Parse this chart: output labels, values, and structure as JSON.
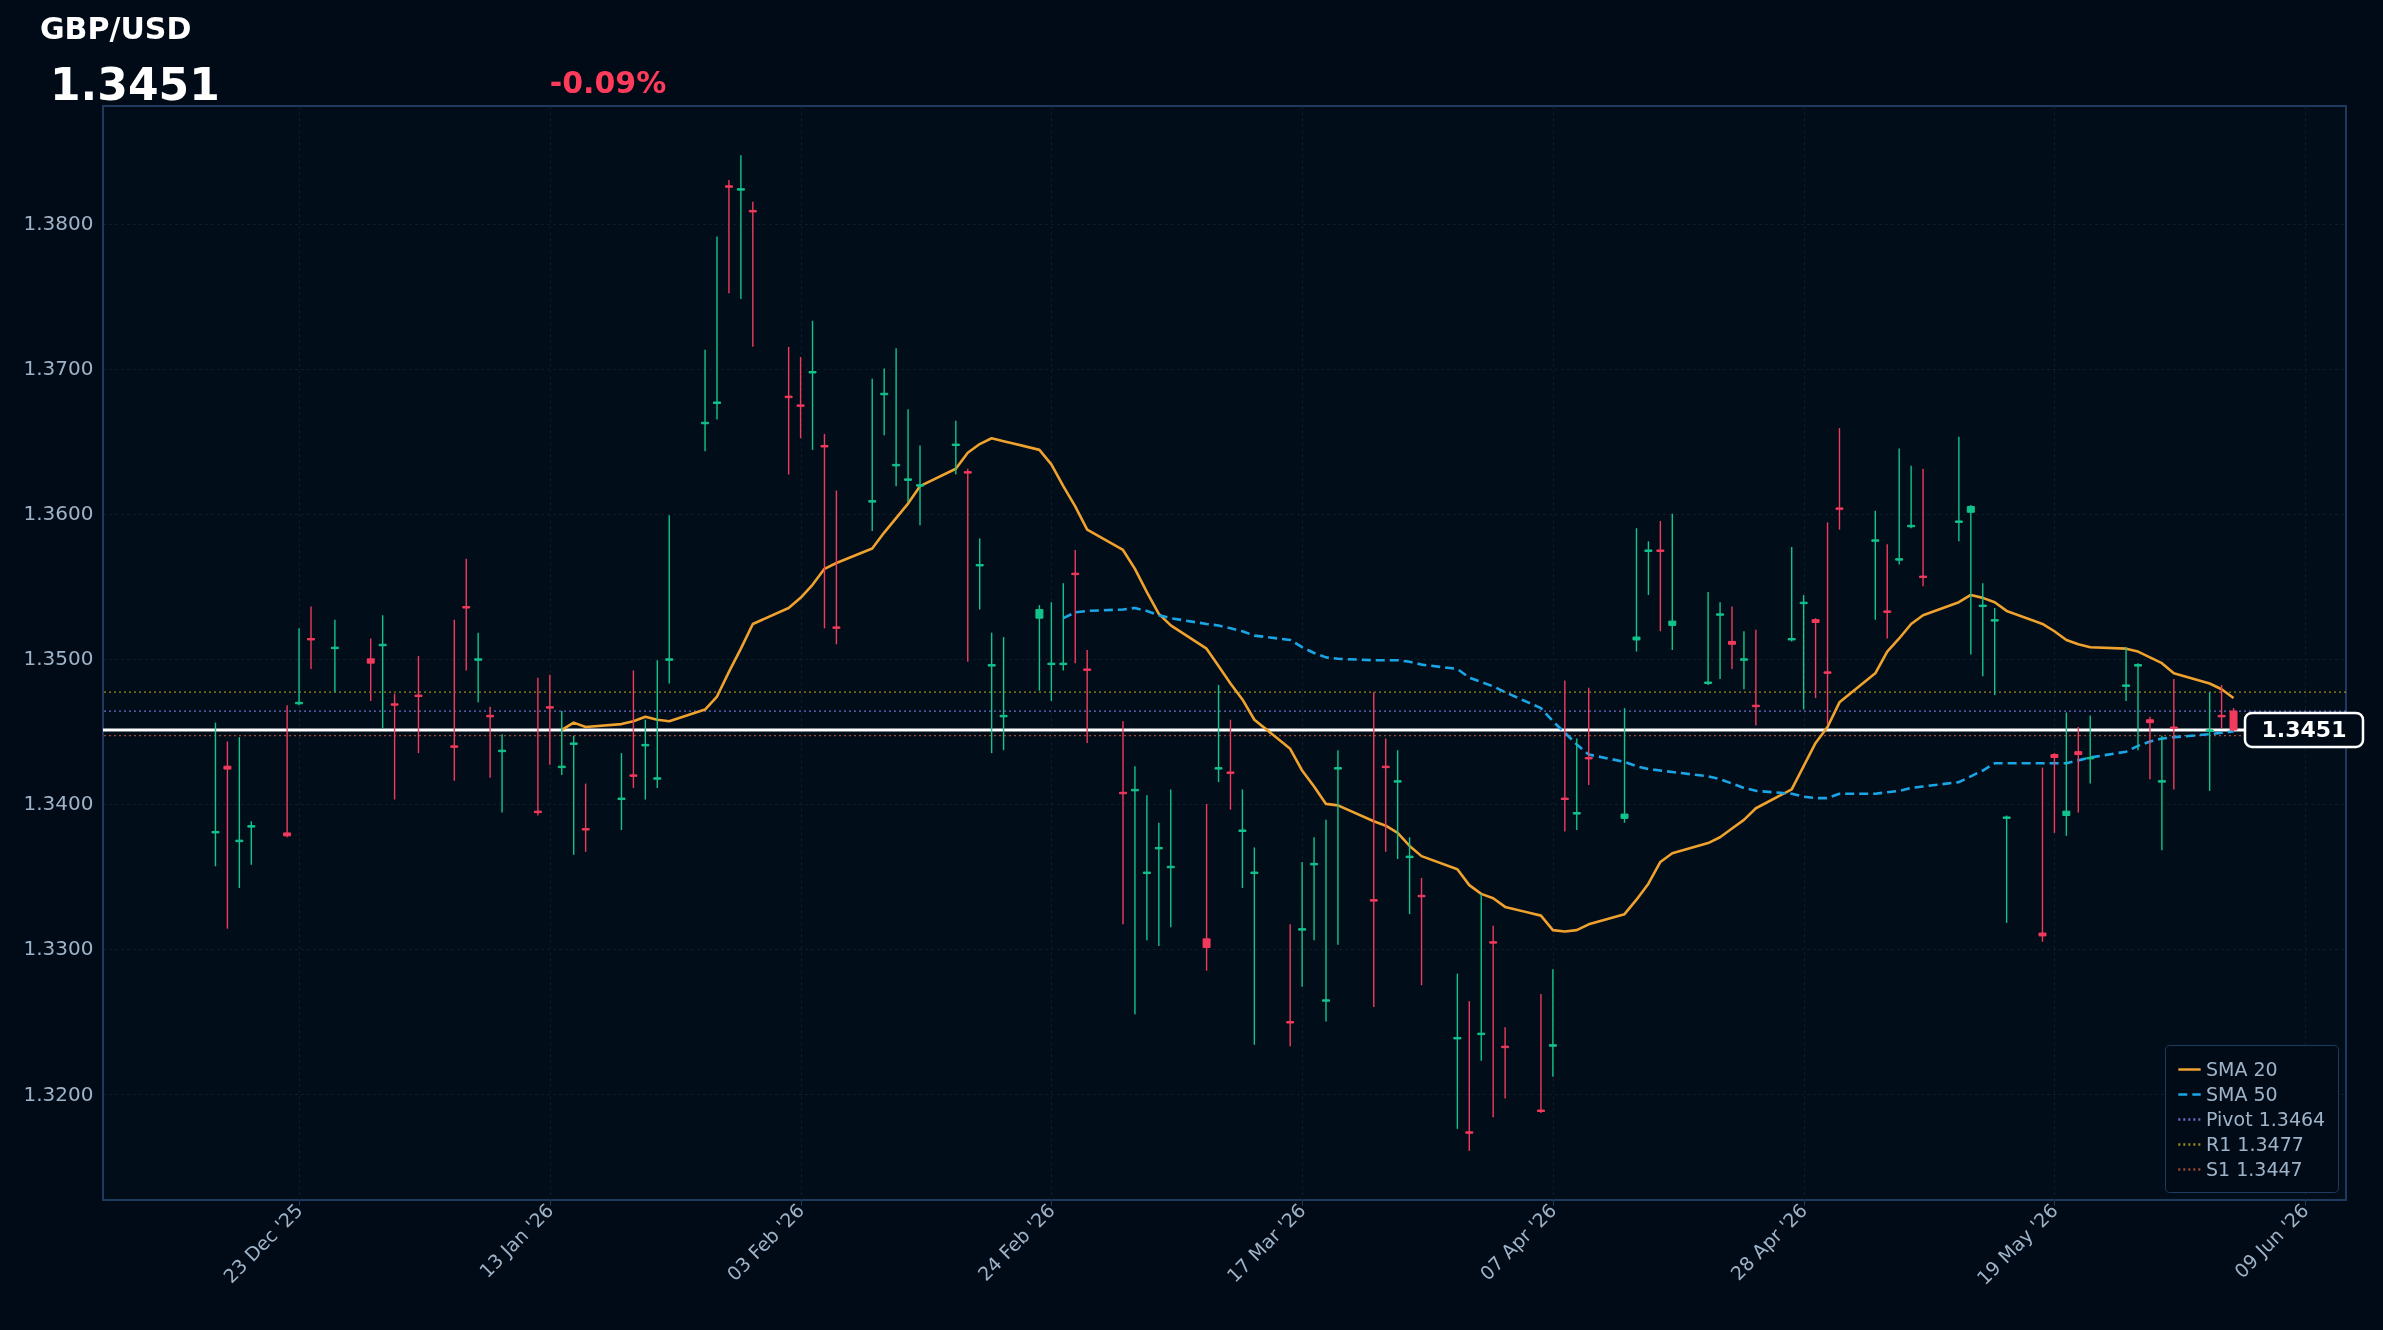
{
  "chart_data": {
    "type": "candlestick",
    "title": "GBP/USD",
    "subtitle": "1.3451",
    "annotations": [
      "-0.09%"
    ],
    "x": [
      "2025-12-16",
      "2025-12-17",
      "2025-12-18",
      "2025-12-19",
      "2025-12-22",
      "2025-12-23",
      "2025-12-24",
      "2025-12-26",
      "2025-12-29",
      "2025-12-30",
      "2025-12-31",
      "2026-01-02",
      "2026-01-05",
      "2026-01-06",
      "2026-01-07",
      "2026-01-08",
      "2026-01-09",
      "2026-01-12",
      "2026-01-13",
      "2026-01-14",
      "2026-01-15",
      "2026-01-16",
      "2026-01-19",
      "2026-01-20",
      "2026-01-21",
      "2026-01-22",
      "2026-01-23",
      "2026-01-26",
      "2026-01-27",
      "2026-01-28",
      "2026-01-29",
      "2026-01-30",
      "2026-02-02",
      "2026-02-03",
      "2026-02-04",
      "2026-02-05",
      "2026-02-06",
      "2026-02-09",
      "2026-02-10",
      "2026-02-11",
      "2026-02-12",
      "2026-02-13",
      "2026-02-16",
      "2026-02-17",
      "2026-02-18",
      "2026-02-19",
      "2026-02-20",
      "2026-02-23",
      "2026-02-24",
      "2026-02-25",
      "2026-02-26",
      "2026-02-27",
      "2026-03-02",
      "2026-03-03",
      "2026-03-04",
      "2026-03-05",
      "2026-03-06",
      "2026-03-09",
      "2026-03-10",
      "2026-03-11",
      "2026-03-12",
      "2026-03-13",
      "2026-03-16",
      "2026-03-17",
      "2026-03-18",
      "2026-03-19",
      "2026-03-20",
      "2026-03-23",
      "2026-03-24",
      "2026-03-25",
      "2026-03-26",
      "2026-03-27",
      "2026-03-30",
      "2026-03-31",
      "2026-04-01",
      "2026-04-02",
      "2026-04-03",
      "2026-04-06",
      "2026-04-07",
      "2026-04-08",
      "2026-04-09",
      "2026-04-10",
      "2026-04-13",
      "2026-04-14",
      "2026-04-15",
      "2026-04-16",
      "2026-04-17",
      "2026-04-20",
      "2026-04-21",
      "2026-04-22",
      "2026-04-23",
      "2026-04-24",
      "2026-04-27",
      "2026-04-28",
      "2026-04-29",
      "2026-04-30",
      "2026-05-01",
      "2026-05-04",
      "2026-05-05",
      "2026-05-06",
      "2026-05-07",
      "2026-05-08",
      "2026-05-11",
      "2026-05-12",
      "2026-05-13",
      "2026-05-14",
      "2026-05-15",
      "2026-05-18",
      "2026-05-19",
      "2026-05-20",
      "2026-05-21",
      "2026-05-22",
      "2026-05-25",
      "2026-05-26",
      "2026-05-27",
      "2026-05-28",
      "2026-05-29",
      "2026-06-01",
      "2026-06-02",
      "2026-06-03"
    ],
    "ohlc": [
      [
        1.338,
        1.3456,
        1.3357,
        1.3381
      ],
      [
        1.3426,
        1.3443,
        1.3314,
        1.3424
      ],
      [
        1.3374,
        1.3446,
        1.3342,
        1.3375
      ],
      [
        1.3384,
        1.3388,
        1.3358,
        1.3385
      ],
      [
        1.338,
        1.3468,
        1.3377,
        1.3378
      ],
      [
        1.3469,
        1.3521,
        1.3468,
        1.347
      ],
      [
        1.3514,
        1.3536,
        1.3493,
        1.3513
      ],
      [
        1.3507,
        1.3527,
        1.3477,
        1.3508
      ],
      [
        1.35,
        1.3514,
        1.3471,
        1.3497
      ],
      [
        1.3509,
        1.353,
        1.3452,
        1.351
      ],
      [
        1.3469,
        1.3476,
        1.3403,
        1.3468
      ],
      [
        1.3475,
        1.3502,
        1.3435,
        1.3474
      ],
      [
        1.344,
        1.3527,
        1.3416,
        1.3439
      ],
      [
        1.3536,
        1.3569,
        1.3492,
        1.3535
      ],
      [
        1.3499,
        1.3518,
        1.347,
        1.35
      ],
      [
        1.3461,
        1.3467,
        1.3418,
        1.346
      ],
      [
        1.3436,
        1.3448,
        1.3394,
        1.3437
      ],
      [
        1.3395,
        1.3487,
        1.3392,
        1.3394
      ],
      [
        1.3467,
        1.3489,
        1.3427,
        1.3466
      ],
      [
        1.3425,
        1.3464,
        1.342,
        1.3426
      ],
      [
        1.3441,
        1.3447,
        1.3365,
        1.3442
      ],
      [
        1.3383,
        1.3414,
        1.3367,
        1.3382
      ],
      [
        1.3403,
        1.3435,
        1.3382,
        1.3404
      ],
      [
        1.342,
        1.3492,
        1.3411,
        1.3419
      ],
      [
        1.344,
        1.3458,
        1.3403,
        1.3441
      ],
      [
        1.3417,
        1.3499,
        1.3411,
        1.3418
      ],
      [
        1.3499,
        1.3599,
        1.3483,
        1.35
      ],
      [
        1.3662,
        1.3713,
        1.3643,
        1.3663
      ],
      [
        1.3676,
        1.3791,
        1.3665,
        1.3677
      ],
      [
        1.3826,
        1.383,
        1.3752,
        1.3825
      ],
      [
        1.3823,
        1.3847,
        1.3748,
        1.3824
      ],
      [
        1.3809,
        1.3815,
        1.3715,
        1.3808
      ],
      [
        1.3681,
        1.3715,
        1.3627,
        1.368
      ],
      [
        1.3675,
        1.3708,
        1.3652,
        1.3674
      ],
      [
        1.3697,
        1.3733,
        1.3644,
        1.3698
      ],
      [
        1.3647,
        1.3655,
        1.3521,
        1.3646
      ],
      [
        1.3522,
        1.3616,
        1.351,
        1.3521
      ],
      [
        1.3608,
        1.3693,
        1.3588,
        1.3609
      ],
      [
        1.3682,
        1.37,
        1.3654,
        1.3683
      ],
      [
        1.3633,
        1.3714,
        1.3619,
        1.3634
      ],
      [
        1.3623,
        1.3672,
        1.3608,
        1.3624
      ],
      [
        1.3619,
        1.3647,
        1.3592,
        1.362
      ],
      [
        1.3647,
        1.3664,
        1.3627,
        1.3648
      ],
      [
        1.3629,
        1.3631,
        1.3498,
        1.3628
      ],
      [
        1.3564,
        1.3583,
        1.3534,
        1.3565
      ],
      [
        1.3495,
        1.3518,
        1.3435,
        1.3496
      ],
      [
        1.346,
        1.3515,
        1.3437,
        1.3461
      ],
      [
        1.3528,
        1.3537,
        1.3478,
        1.3534
      ],
      [
        1.3496,
        1.3539,
        1.3471,
        1.3497
      ],
      [
        1.3496,
        1.3552,
        1.3492,
        1.3497
      ],
      [
        1.3559,
        1.3575,
        1.3497,
        1.3558
      ],
      [
        1.3493,
        1.3506,
        1.3442,
        1.3492
      ],
      [
        1.3408,
        1.3457,
        1.3317,
        1.3407
      ],
      [
        1.3409,
        1.3426,
        1.3255,
        1.341
      ],
      [
        1.3352,
        1.3406,
        1.3306,
        1.3353
      ],
      [
        1.3369,
        1.3387,
        1.3302,
        1.337
      ],
      [
        1.3356,
        1.341,
        1.3315,
        1.3357
      ],
      [
        1.3307,
        1.34,
        1.3285,
        1.3301
      ],
      [
        1.3424,
        1.3482,
        1.3415,
        1.3425
      ],
      [
        1.3422,
        1.3458,
        1.3396,
        1.3421
      ],
      [
        1.3381,
        1.341,
        1.3342,
        1.3382
      ],
      [
        1.3352,
        1.337,
        1.3234,
        1.3353
      ],
      [
        1.325,
        1.3317,
        1.3233,
        1.3249
      ],
      [
        1.3313,
        1.336,
        1.3274,
        1.3314
      ],
      [
        1.3358,
        1.3377,
        1.3306,
        1.3359
      ],
      [
        1.3264,
        1.3389,
        1.325,
        1.3265
      ],
      [
        1.3424,
        1.3437,
        1.3303,
        1.3425
      ],
      [
        1.3334,
        1.3477,
        1.326,
        1.3333
      ],
      [
        1.3426,
        1.3445,
        1.3367,
        1.3425
      ],
      [
        1.3415,
        1.3437,
        1.3362,
        1.3416
      ],
      [
        1.3363,
        1.3377,
        1.3324,
        1.3364
      ],
      [
        1.3337,
        1.3349,
        1.3275,
        1.3336
      ],
      [
        1.3238,
        1.3283,
        1.3176,
        1.3239
      ],
      [
        1.3174,
        1.3264,
        1.3161,
        1.3173
      ],
      [
        1.3241,
        1.3338,
        1.3223,
        1.3242
      ],
      [
        1.3305,
        1.3316,
        1.3184,
        1.3304
      ],
      [
        1.3233,
        1.3246,
        1.3197,
        1.3232
      ],
      [
        1.3189,
        1.3269,
        1.3187,
        1.3188
      ],
      [
        1.3233,
        1.3286,
        1.3212,
        1.3234
      ],
      [
        1.3404,
        1.3485,
        1.3381,
        1.3403
      ],
      [
        1.3393,
        1.3445,
        1.3382,
        1.3394
      ],
      [
        1.3432,
        1.348,
        1.3413,
        1.3431
      ],
      [
        1.339,
        1.3466,
        1.3387,
        1.3393
      ],
      [
        1.3513,
        1.359,
        1.3505,
        1.3515
      ],
      [
        1.3574,
        1.3581,
        1.3544,
        1.3575
      ],
      [
        1.3575,
        1.3595,
        1.3519,
        1.3574
      ],
      [
        1.3523,
        1.36,
        1.3506,
        1.3526
      ],
      [
        1.3483,
        1.3546,
        1.3482,
        1.3484
      ],
      [
        1.353,
        1.3539,
        1.3486,
        1.3531
      ],
      [
        1.3512,
        1.3536,
        1.3493,
        1.351
      ],
      [
        1.3499,
        1.3519,
        1.3479,
        1.35
      ],
      [
        1.3468,
        1.352,
        1.3454,
        1.3467
      ],
      [
        1.3513,
        1.3577,
        1.3512,
        1.3514
      ],
      [
        1.3538,
        1.3544,
        1.3465,
        1.3539
      ],
      [
        1.3527,
        1.3528,
        1.3473,
        1.3525
      ],
      [
        1.3491,
        1.3594,
        1.3455,
        1.349
      ],
      [
        1.3604,
        1.3659,
        1.3589,
        1.3603
      ],
      [
        1.3581,
        1.3602,
        1.3527,
        1.3582
      ],
      [
        1.3533,
        1.3579,
        1.3514,
        1.3532
      ],
      [
        1.3568,
        1.3645,
        1.3565,
        1.3569
      ],
      [
        1.3591,
        1.3633,
        1.359,
        1.3592
      ],
      [
        1.3557,
        1.3631,
        1.355,
        1.3556
      ],
      [
        1.3594,
        1.3653,
        1.3581,
        1.3595
      ],
      [
        1.3601,
        1.3606,
        1.3503,
        1.3605
      ],
      [
        1.3536,
        1.3552,
        1.3488,
        1.3537
      ],
      [
        1.3526,
        1.3535,
        1.3475,
        1.3527
      ],
      [
        1.339,
        1.3392,
        1.3318,
        1.3391
      ],
      [
        1.3311,
        1.3425,
        1.3305,
        1.3309
      ],
      [
        1.3434,
        1.3435,
        1.338,
        1.3432
      ],
      [
        1.3392,
        1.3463,
        1.3378,
        1.3395
      ],
      [
        1.3436,
        1.3453,
        1.3394,
        1.3434
      ],
      [
        1.3431,
        1.3461,
        1.3414,
        1.3432
      ],
      [
        1.3481,
        1.3508,
        1.3471,
        1.3482
      ],
      [
        1.3495,
        1.3497,
        1.3437,
        1.3496
      ],
      [
        1.3458,
        1.346,
        1.3417,
        1.3456
      ],
      [
        1.3415,
        1.3447,
        1.3368,
        1.3416
      ],
      [
        1.3453,
        1.3486,
        1.341,
        1.3452
      ],
      [
        1.345,
        1.3477,
        1.3409,
        1.3451
      ],
      [
        1.3461,
        1.3482,
        1.3452,
        1.346
      ],
      [
        1.3464,
        1.3466,
        1.345,
        1.3451
      ]
    ],
    "colors": [
      "#12c48b",
      "#f23a5c",
      "#12c48b",
      "#12c48b",
      "#f23a5c",
      "#12c48b",
      "#f23a5c",
      "#12c48b",
      "#f23a5c",
      "#12c48b",
      "#f23a5c",
      "#f23a5c",
      "#f23a5c",
      "#f23a5c",
      "#12c48b",
      "#f23a5c",
      "#12c48b",
      "#f23a5c",
      "#f23a5c",
      "#12c48b",
      "#12c48b",
      "#f23a5c",
      "#12c48b",
      "#f23a5c",
      "#12c48b",
      "#12c48b",
      "#12c48b",
      "#12c48b",
      "#12c48b",
      "#f23a5c",
      "#12c48b",
      "#f23a5c",
      "#f23a5c",
      "#f23a5c",
      "#12c48b",
      "#f23a5c",
      "#f23a5c",
      "#12c48b",
      "#12c48b",
      "#12c48b",
      "#12c48b",
      "#12c48b",
      "#12c48b",
      "#f23a5c",
      "#12c48b",
      "#12c48b",
      "#12c48b",
      "#12c48b",
      "#12c48b",
      "#12c48b",
      "#f23a5c",
      "#f23a5c",
      "#f23a5c",
      "#12c48b",
      "#12c48b",
      "#12c48b",
      "#12c48b",
      "#f23a5c",
      "#12c48b",
      "#f23a5c",
      "#12c48b",
      "#12c48b",
      "#f23a5c",
      "#12c48b",
      "#12c48b",
      "#12c48b",
      "#12c48b",
      "#f23a5c",
      "#f23a5c",
      "#12c48b",
      "#12c48b",
      "#f23a5c",
      "#12c48b",
      "#f23a5c",
      "#12c48b",
      "#f23a5c",
      "#f23a5c",
      "#f23a5c",
      "#12c48b",
      "#f23a5c",
      "#12c48b",
      "#f23a5c",
      "#12c48b",
      "#12c48b",
      "#12c48b",
      "#f23a5c",
      "#12c48b",
      "#12c48b",
      "#12c48b",
      "#f23a5c",
      "#12c48b",
      "#f23a5c",
      "#12c48b",
      "#12c48b",
      "#f23a5c",
      "#f23a5c",
      "#f23a5c",
      "#12c48b",
      "#f23a5c",
      "#12c48b",
      "#12c48b",
      "#f23a5c",
      "#12c48b",
      "#12c48b",
      "#12c48b",
      "#12c48b",
      "#12c48b",
      "#f23a5c",
      "#f23a5c",
      "#12c48b",
      "#f23a5c",
      "#12c48b",
      "#12c48b",
      "#12c48b",
      "#f23a5c",
      "#12c48b",
      "#f23a5c",
      "#12c48b",
      "#f23a5c",
      "#f23a5c"
    ],
    "series": [
      {
        "name": "SMA 20",
        "type": "line",
        "line_style": "solid",
        "color": "#f0a22e",
        "x": [
          "2026-01-14",
          "2026-01-15",
          "2026-01-16",
          "2026-01-19",
          "2026-01-20",
          "2026-01-21",
          "2026-01-22",
          "2026-01-23",
          "2026-01-26",
          "2026-01-27",
          "2026-01-28",
          "2026-01-29",
          "2026-01-30",
          "2026-02-02",
          "2026-02-03",
          "2026-02-04",
          "2026-02-05",
          "2026-02-06",
          "2026-02-09",
          "2026-02-10",
          "2026-02-11",
          "2026-02-12",
          "2026-02-13",
          "2026-02-16",
          "2026-02-17",
          "2026-02-18",
          "2026-02-19",
          "2026-02-20",
          "2026-02-23",
          "2026-02-24",
          "2026-02-25",
          "2026-02-26",
          "2026-02-27",
          "2026-03-02",
          "2026-03-03",
          "2026-03-04",
          "2026-03-05",
          "2026-03-06",
          "2026-03-09",
          "2026-03-10",
          "2026-03-11",
          "2026-03-12",
          "2026-03-13",
          "2026-03-16",
          "2026-03-17",
          "2026-03-18",
          "2026-03-19",
          "2026-03-20",
          "2026-03-23",
          "2026-03-24",
          "2026-03-25",
          "2026-03-26",
          "2026-03-27",
          "2026-03-30",
          "2026-03-31",
          "2026-04-01",
          "2026-04-02",
          "2026-04-03",
          "2026-04-06",
          "2026-04-07",
          "2026-04-08",
          "2026-04-09",
          "2026-04-10",
          "2026-04-13",
          "2026-04-14",
          "2026-04-15",
          "2026-04-16",
          "2026-04-17",
          "2026-04-20",
          "2026-04-21",
          "2026-04-22",
          "2026-04-23",
          "2026-04-24",
          "2026-04-27",
          "2026-04-28",
          "2026-04-29",
          "2026-04-30",
          "2026-05-01",
          "2026-05-04",
          "2026-05-05",
          "2026-05-06",
          "2026-05-07",
          "2026-05-08",
          "2026-05-11",
          "2026-05-12",
          "2026-05-13",
          "2026-05-14",
          "2026-05-15",
          "2026-05-18",
          "2026-05-19",
          "2026-05-20",
          "2026-05-21",
          "2026-05-22",
          "2026-05-25",
          "2026-05-26",
          "2026-05-27",
          "2026-05-28",
          "2026-05-29",
          "2026-06-01",
          "2026-06-02",
          "2026-06-03"
        ],
        "values": [
          1.3451,
          1.3456,
          1.3453,
          1.3455,
          1.3457,
          1.346,
          1.3458,
          1.3457,
          1.3465,
          1.3474,
          1.3491,
          1.3507,
          1.3524,
          1.3535,
          1.3542,
          1.3551,
          1.3562,
          1.3566,
          1.3576,
          1.3587,
          1.3597,
          1.3607,
          1.3619,
          1.3631,
          1.3642,
          1.3648,
          1.3652,
          1.365,
          1.3644,
          1.3634,
          1.3619,
          1.3605,
          1.3589,
          1.3575,
          1.3562,
          1.3546,
          1.3531,
          1.3523,
          1.3507,
          1.3495,
          1.3483,
          1.3472,
          1.3458,
          1.3438,
          1.3423,
          1.3412,
          1.34,
          1.3399,
          1.3388,
          1.3385,
          1.338,
          1.3371,
          1.3364,
          1.3355,
          1.3344,
          1.3338,
          1.3335,
          1.3329,
          1.3323,
          1.3313,
          1.3312,
          1.3313,
          1.3317,
          1.3324,
          1.3334,
          1.3345,
          1.336,
          1.3366,
          1.3373,
          1.3377,
          1.3383,
          1.3389,
          1.3397,
          1.341,
          1.3426,
          1.3442,
          1.3453,
          1.347,
          1.349,
          1.3505,
          1.3514,
          1.3524,
          1.353,
          1.3539,
          1.3544,
          1.3542,
          1.3539,
          1.3533,
          1.3524,
          1.3519,
          1.3513,
          1.351,
          1.3508,
          1.3507,
          1.3505,
          1.3501,
          1.3497,
          1.349,
          1.3483,
          1.3479,
          1.3473
        ]
      },
      {
        "name": "SMA 50",
        "type": "line",
        "line_style": "dashed",
        "color": "#1aa6e6",
        "x": [
          "2026-02-25",
          "2026-02-26",
          "2026-02-27",
          "2026-03-02",
          "2026-03-03",
          "2026-03-04",
          "2026-03-05",
          "2026-03-06",
          "2026-03-09",
          "2026-03-10",
          "2026-03-11",
          "2026-03-12",
          "2026-03-13",
          "2026-03-16",
          "2026-03-17",
          "2026-03-18",
          "2026-03-19",
          "2026-03-20",
          "2026-03-23",
          "2026-03-25",
          "2026-03-26",
          "2026-03-27",
          "2026-03-30",
          "2026-03-31",
          "2026-04-01",
          "2026-04-02",
          "2026-04-03",
          "2026-04-06",
          "2026-04-07",
          "2026-04-08",
          "2026-04-09",
          "2026-04-10",
          "2026-04-13",
          "2026-04-14",
          "2026-04-15",
          "2026-04-16",
          "2026-04-17",
          "2026-04-20",
          "2026-04-21",
          "2026-04-22",
          "2026-04-23",
          "2026-04-24",
          "2026-04-27",
          "2026-04-28",
          "2026-04-29",
          "2026-04-30",
          "2026-05-01",
          "2026-05-04",
          "2026-05-05",
          "2026-05-06",
          "2026-05-07",
          "2026-05-08",
          "2026-05-11",
          "2026-05-12",
          "2026-05-13",
          "2026-05-14",
          "2026-05-15",
          "2026-05-18",
          "2026-05-19",
          "2026-05-20",
          "2026-05-21",
          "2026-05-22",
          "2026-05-25",
          "2026-05-26",
          "2026-05-27",
          "2026-05-28",
          "2026-05-29",
          "2026-06-01",
          "2026-06-02",
          "2026-06-03"
        ],
        "values": [
          1.3528,
          1.3532,
          1.3533,
          1.3534,
          1.3535,
          1.3533,
          1.353,
          1.3528,
          1.3524,
          1.3523,
          1.3521,
          1.3519,
          1.3516,
          1.3513,
          1.3508,
          1.3504,
          1.3501,
          1.35,
          1.3499,
          1.3499,
          1.3498,
          1.3496,
          1.3493,
          1.3487,
          1.3484,
          1.3481,
          1.3477,
          1.3466,
          1.3457,
          1.3449,
          1.3441,
          1.3434,
          1.3429,
          1.3426,
          1.3424,
          1.3423,
          1.3422,
          1.3419,
          1.3417,
          1.3414,
          1.3411,
          1.3409,
          1.3407,
          1.3405,
          1.3404,
          1.3404,
          1.3407,
          1.3407,
          1.3408,
          1.3409,
          1.3411,
          1.3412,
          1.3415,
          1.3419,
          1.3423,
          1.3428,
          1.3428,
          1.3428,
          1.3428,
          1.3428,
          1.343,
          1.3432,
          1.3436,
          1.344,
          1.3443,
          1.3445,
          1.3446,
          1.3448,
          1.3449,
          1.345
        ]
      }
    ],
    "ref_lines": [
      {
        "axis": "y",
        "value": 1.3464,
        "label": "Pivot 1.3464",
        "color": "#6a6fc8",
        "line_style": "dotted"
      },
      {
        "axis": "y",
        "value": 1.3477,
        "label": "R1 1.3477",
        "color": "#9c8b16",
        "line_style": "dotted"
      },
      {
        "axis": "y",
        "value": 1.3447,
        "label": "S1 1.3447",
        "color": "#a3472f",
        "line_style": "dotted"
      },
      {
        "axis": "y",
        "value": 1.3451,
        "label": "1.3451",
        "color": "#ffffff",
        "line_style": "solid"
      }
    ],
    "xlim": [
      "2025-12-07",
      "2026-06-12"
    ],
    "xticks": [
      {
        "value": "2025-12-23",
        "label": "23 Dec '25"
      },
      {
        "value": "2026-01-13",
        "label": "13 Jan '26"
      },
      {
        "value": "2026-02-03",
        "label": "03 Feb '26"
      },
      {
        "value": "2026-02-24",
        "label": "24 Feb '26"
      },
      {
        "value": "2026-03-17",
        "label": "17 Mar '26"
      },
      {
        "value": "2026-04-07",
        "label": "07 Apr '26"
      },
      {
        "value": "2026-04-28",
        "label": "28 Apr '26"
      },
      {
        "value": "2026-05-19",
        "label": "19 May '26"
      },
      {
        "value": "2026-06-09",
        "label": "09 Jun '26"
      }
    ],
    "ylim": [
      1.3127,
      1.3881
    ],
    "yticks": [
      {
        "value": 1.32,
        "label": "1.3200"
      },
      {
        "value": 1.33,
        "label": "1.3300"
      },
      {
        "value": 1.34,
        "label": "1.3400"
      },
      {
        "value": 1.35,
        "label": "1.3500"
      },
      {
        "value": 1.36,
        "label": "1.3600"
      },
      {
        "value": 1.37,
        "label": "1.3700"
      },
      {
        "value": 1.38,
        "label": "1.3800"
      }
    ],
    "grid": true,
    "legend": "bottom right"
  }
}
